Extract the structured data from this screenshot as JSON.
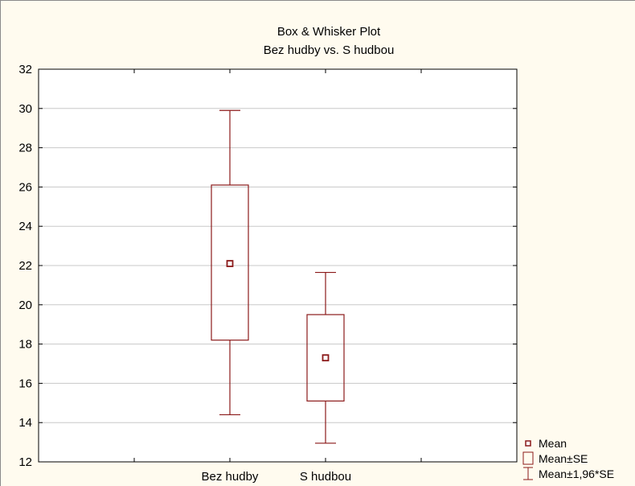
{
  "chart_data": {
    "type": "boxplot",
    "title": "Box & Whisker Plot",
    "subtitle": "Bez hudby vs. S hudbou",
    "xlabel": "",
    "ylabel": "",
    "ylim": [
      12,
      32
    ],
    "yticks": [
      "12",
      "14",
      "16",
      "18",
      "20",
      "22",
      "24",
      "26",
      "28",
      "30",
      "32"
    ],
    "grid": true,
    "categories": [
      "Bez hudby",
      "S hudbou"
    ],
    "series": [
      {
        "category": "Bez hudby",
        "mean": 22.1,
        "se_low": 18.2,
        "se_high": 26.1,
        "ci_low": 14.4,
        "ci_high": 29.9
      },
      {
        "category": "S hudbou",
        "mean": 17.3,
        "se_low": 15.1,
        "se_high": 19.5,
        "ci_low": 12.95,
        "ci_high": 21.65
      }
    ],
    "legend_position": "bottom-right",
    "legend": [
      {
        "symbol": "mean",
        "label": "Mean"
      },
      {
        "symbol": "box",
        "label": "Mean±SE"
      },
      {
        "symbol": "whisker",
        "label": "Mean±1,96*SE"
      }
    ],
    "colors": {
      "series": "#8b1a1a",
      "background": "#fffbef",
      "plot_area": "#ffffff",
      "grid": "#c8c8c8"
    }
  }
}
